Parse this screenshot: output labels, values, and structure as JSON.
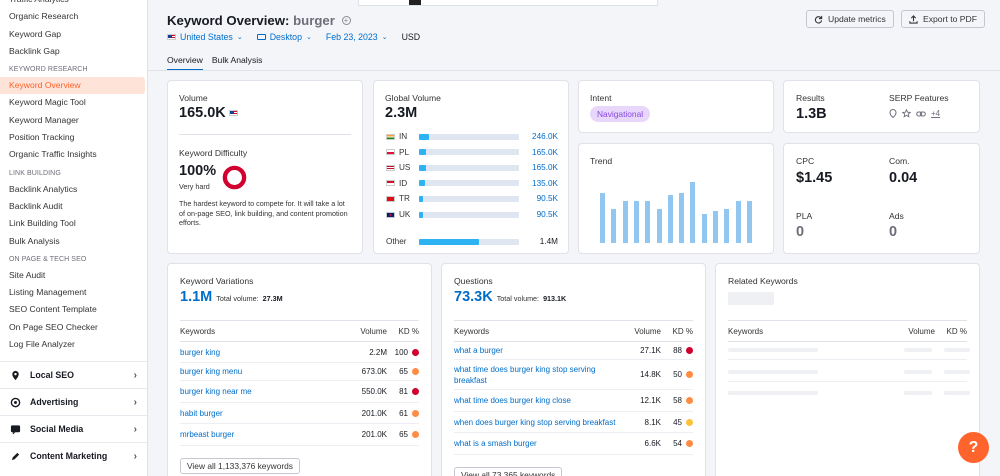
{
  "sidebar": {
    "top_items": [
      "Traffic Analytics",
      "Organic Research",
      "Keyword Gap",
      "Backlink Gap"
    ],
    "keyword_research": {
      "heading": "KEYWORD RESEARCH",
      "items": [
        "Keyword Overview",
        "Keyword Magic Tool",
        "Keyword Manager",
        "Position Tracking",
        "Organic Traffic Insights"
      ]
    },
    "link_building": {
      "heading": "LINK BUILDING",
      "items": [
        "Backlink Analytics",
        "Backlink Audit",
        "Link Building Tool",
        "Bulk Analysis"
      ]
    },
    "onpage": {
      "heading": "ON PAGE & TECH SEO",
      "items": [
        "Site Audit",
        "Listing Management",
        "SEO Content Template",
        "On Page SEO Checker",
        "Log File Analyzer"
      ]
    },
    "groups": [
      "Local SEO",
      "Advertising",
      "Social Media",
      "Content Marketing"
    ]
  },
  "header": {
    "title": "Keyword Overview:",
    "keyword": "burger",
    "country": "United States",
    "device": "Desktop",
    "date": "Feb 23, 2023",
    "currency": "USD",
    "update_btn": "Update metrics",
    "export_btn": "Export to PDF",
    "tabs": [
      "Overview",
      "Bulk Analysis"
    ]
  },
  "volume": {
    "label": "Volume",
    "value": "165.0K"
  },
  "difficulty": {
    "label": "Keyword Difficulty",
    "value": "100%",
    "level": "Very hard",
    "percent": 100,
    "desc": "The hardest keyword to compete for. It will take a lot of on-page SEO, link building, and content promotion efforts."
  },
  "global_volume": {
    "label": "Global Volume",
    "value": "2.3M",
    "rows": [
      {
        "code": "IN",
        "value": "246.0K",
        "fraction": 0.1
      },
      {
        "code": "PL",
        "value": "165.0K",
        "fraction": 0.07
      },
      {
        "code": "US",
        "value": "165.0K",
        "fraction": 0.07
      },
      {
        "code": "ID",
        "value": "135.0K",
        "fraction": 0.06
      },
      {
        "code": "TR",
        "value": "90.5K",
        "fraction": 0.04
      },
      {
        "code": "UK",
        "value": "90.5K",
        "fraction": 0.04
      }
    ],
    "other": {
      "label": "Other",
      "value": "1.4M",
      "fraction": 0.6
    }
  },
  "intent": {
    "label": "Intent",
    "value": "Navigational"
  },
  "trend": {
    "label": "Trend",
    "values": [
      0.76,
      0.52,
      0.64,
      0.64,
      0.64,
      0.52,
      0.72,
      0.76,
      0.92,
      0.44,
      0.48,
      0.52,
      0.64,
      0.64
    ]
  },
  "results": {
    "label": "Results",
    "value": "1.3B",
    "serp_label": "SERP Features",
    "serp_more": "+4"
  },
  "cpc": {
    "label": "CPC",
    "value": "$1.45",
    "com_label": "Com.",
    "com_value": "0.04",
    "pla_label": "PLA",
    "pla_value": "0",
    "ads_label": "Ads",
    "ads_value": "0"
  },
  "variations": {
    "title": "Keyword Variations",
    "value": "1.1M",
    "total_label": "Total volume:",
    "total": "27.3M",
    "col_kw": "Keywords",
    "col_vol": "Volume",
    "col_kd": "KD %",
    "rows": [
      {
        "kw": "burger king",
        "vol": "2.2M",
        "kd": "100",
        "color": "#d1002f"
      },
      {
        "kw": "burger king menu",
        "vol": "673.0K",
        "kd": "65",
        "color": "#ff8c43"
      },
      {
        "kw": "burger king near me",
        "vol": "550.0K",
        "kd": "81",
        "color": "#d1002f"
      },
      {
        "kw": "habit burger",
        "vol": "201.0K",
        "kd": "61",
        "color": "#ff8c43"
      },
      {
        "kw": "mrbeast burger",
        "vol": "201.0K",
        "kd": "65",
        "color": "#ff8c43"
      }
    ],
    "view_all": "View all 1,133,376 keywords"
  },
  "questions": {
    "title": "Questions",
    "value": "73.3K",
    "total_label": "Total volume:",
    "total": "913.1K",
    "col_kw": "Keywords",
    "col_vol": "Volume",
    "col_kd": "KD %",
    "rows": [
      {
        "kw": "what a burger",
        "vol": "27.1K",
        "kd": "88",
        "color": "#d1002f"
      },
      {
        "kw": "what time does burger king stop serving breakfast",
        "vol": "14.8K",
        "kd": "50",
        "color": "#ff8c43"
      },
      {
        "kw": "what time does burger king close",
        "vol": "12.1K",
        "kd": "58",
        "color": "#ff8c43"
      },
      {
        "kw": "when does burger king stop serving breakfast",
        "vol": "8.1K",
        "kd": "45",
        "color": "#fdc23c"
      },
      {
        "kw": "what is a smash burger",
        "vol": "6.6K",
        "kd": "54",
        "color": "#ff8c43"
      }
    ],
    "view_all": "View all 73,365 keywords"
  },
  "related": {
    "title": "Related Keywords",
    "col_kw": "Keywords",
    "col_vol": "Volume",
    "col_kd": "KD %"
  },
  "help": "?"
}
